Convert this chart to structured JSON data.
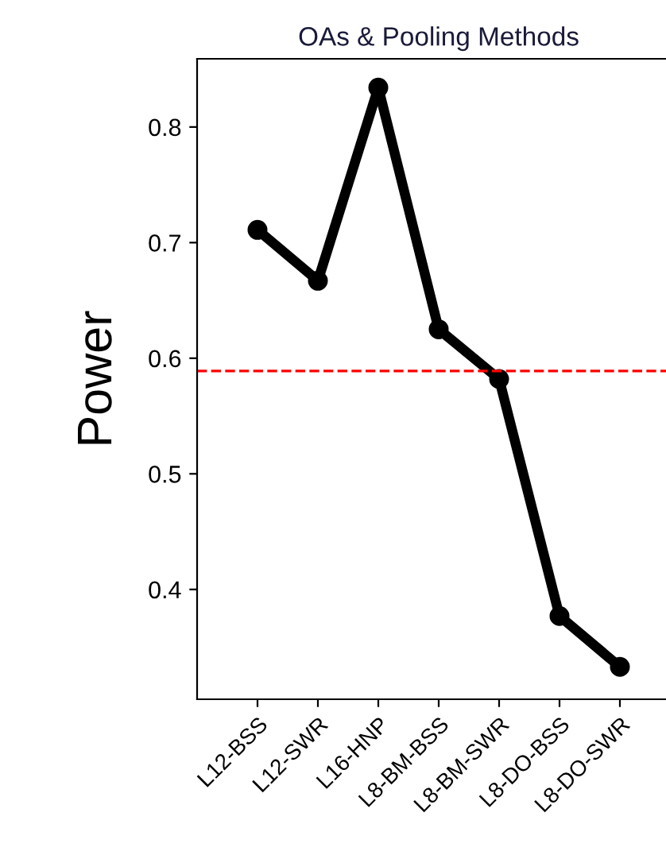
{
  "chart_data": {
    "type": "line",
    "title": "OAs & Pooling Methods",
    "ylabel": "Power",
    "categories": [
      "L12-BSS",
      "L12-SWR",
      "L16-HNP",
      "L8-BM-BSS",
      "L8-BM-SWR",
      "L8-DO-BSS",
      "L8-DO-SWR"
    ],
    "series": [
      {
        "color": "#000000",
        "values": [
          0.711,
          0.667,
          0.834,
          0.625,
          0.582,
          0.377,
          0.333
        ]
      }
    ],
    "ylim": [
      0.305,
      0.859
    ],
    "yticks": [
      0.4,
      0.5,
      0.6,
      0.7,
      0.8
    ],
    "ref_lines": [
      {
        "axis": "y",
        "value": 0.589,
        "color": "#ff0000",
        "line_style": "dashed"
      }
    ],
    "grid": false,
    "legend": false,
    "marker": "circle",
    "line_style": "solid"
  }
}
